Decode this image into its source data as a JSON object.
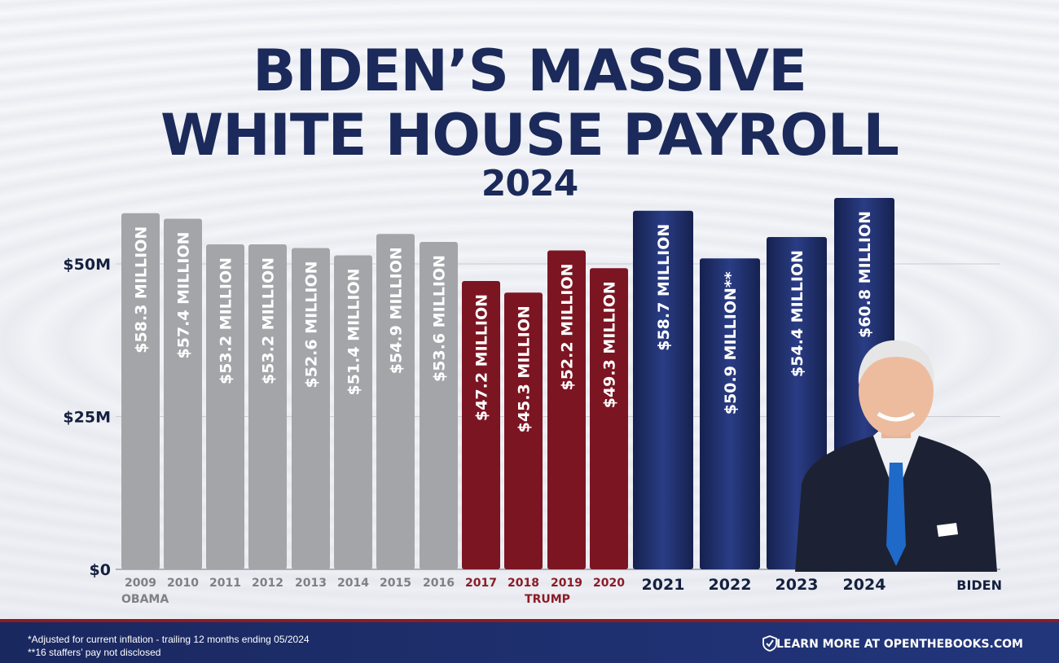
{
  "title_line1": "BIDEN’S MASSIVE",
  "title_line2": "WHITE HOUSE PAYROLL",
  "title_line3": "2024",
  "footnote1": "*Adjusted for current inflation - trailing 12 months ending 05/2024",
  "footnote2": "**16 staffers’ pay not disclosed",
  "cta": "LEARN MORE AT OPENTHEBOOKS.COM",
  "colors": {
    "obama": "#a3a5a8",
    "trump": "#7c1522",
    "biden": "#1d2b64",
    "title": "#1b2a5a"
  },
  "icons": {
    "cta_icon": "shield-check-icon"
  },
  "chart_data": {
    "type": "bar",
    "y_ticks": [
      "$0",
      "$25M",
      "$50M"
    ],
    "y_tick_values": [
      0,
      25,
      50
    ],
    "ylim": [
      0,
      50
    ],
    "grid": true,
    "categories": [
      "2009",
      "2010",
      "2011",
      "2012",
      "2013",
      "2014",
      "2015",
      "2016",
      "2017",
      "2018",
      "2019",
      "2020",
      "2021",
      "2022",
      "2023",
      "2024"
    ],
    "values": [
      58.3,
      57.4,
      53.2,
      53.2,
      52.6,
      51.4,
      54.9,
      53.6,
      47.2,
      45.3,
      52.2,
      49.3,
      58.7,
      50.9,
      54.4,
      60.8
    ],
    "value_labels": [
      "$58.3 MILLION",
      "$57.4 MILLION",
      "$53.2 MILLION",
      "$53.2 MILLION",
      "$52.6 MILLION",
      "$51.4 MILLION",
      "$54.9 MILLION",
      "$53.6 MILLION",
      "$47.2 MILLION",
      "$45.3 MILLION",
      "$52.2 MILLION",
      "$49.3 MILLION",
      "$58.7 MILLION",
      "$50.9 MILLION**",
      "$54.4 MILLION",
      "$60.8 MILLION"
    ],
    "groups": [
      {
        "name": "OBAMA",
        "from": 0,
        "to": 7,
        "color": "obama"
      },
      {
        "name": "TRUMP",
        "from": 8,
        "to": 11,
        "color": "trump"
      },
      {
        "name": "BIDEN",
        "from": 12,
        "to": 15,
        "color": "biden"
      }
    ]
  }
}
